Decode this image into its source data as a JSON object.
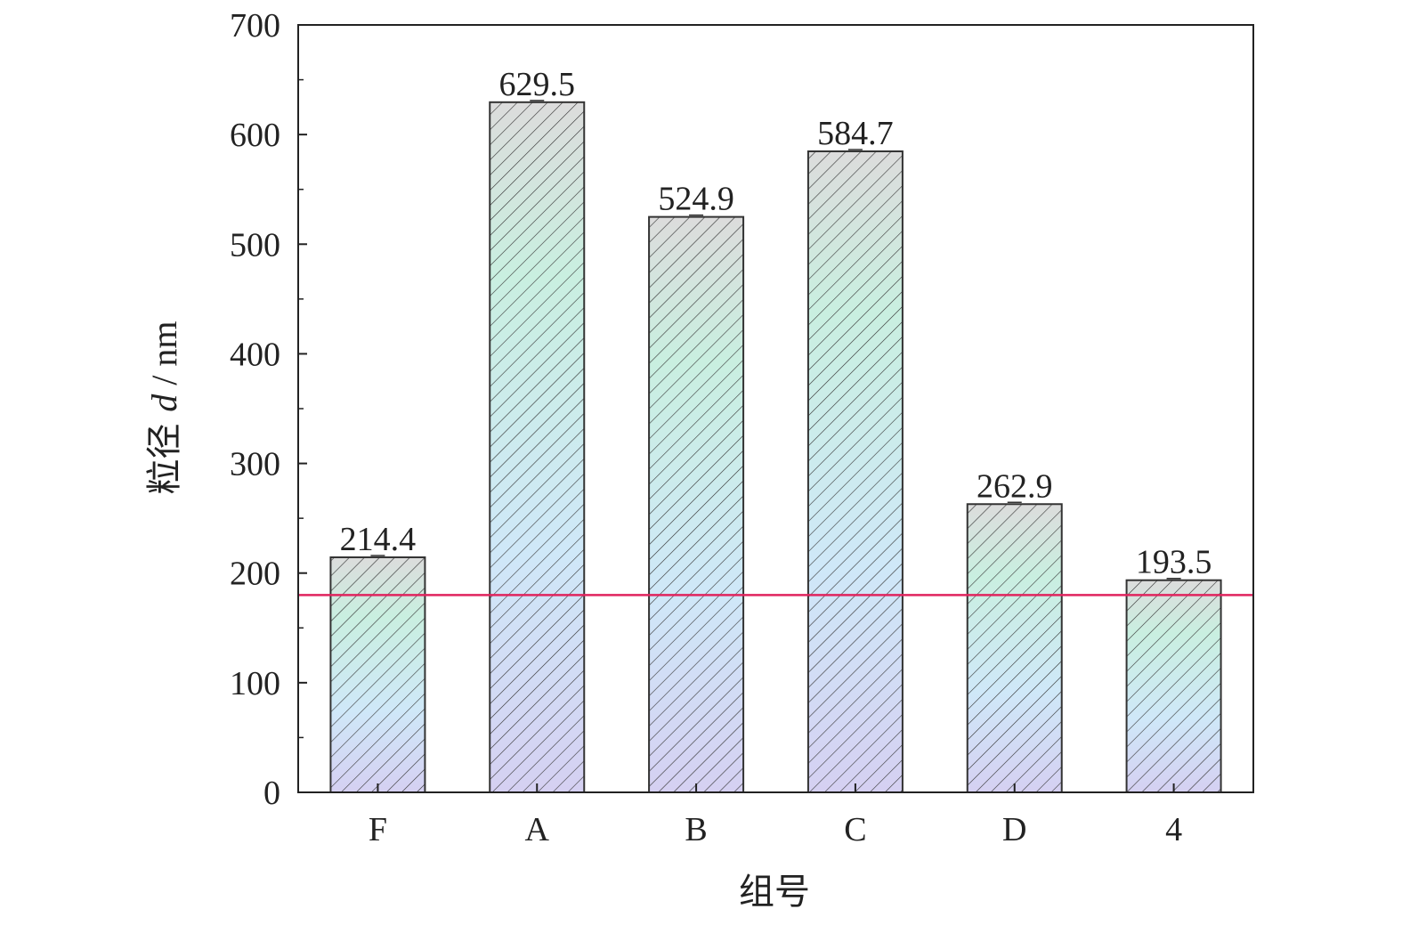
{
  "chart_data": {
    "type": "bar",
    "categories": [
      "F",
      "A",
      "B",
      "C",
      "D",
      "4"
    ],
    "values": [
      214.4,
      629.5,
      524.9,
      584.7,
      262.9,
      193.5
    ],
    "data_labels": [
      "214.4",
      "629.5",
      "524.9",
      "584.7",
      "262.9",
      "193.5"
    ],
    "xlabel": "组号",
    "ylabel": {
      "prefix": "粒径 ",
      "variable": "d",
      "suffix": " / nm"
    },
    "ylim": [
      0,
      700
    ],
    "yticks": [
      0,
      100,
      200,
      300,
      400,
      500,
      600,
      700
    ],
    "reference_line": {
      "y": 180,
      "color": "#e0245e"
    },
    "grid": false,
    "legend": "none",
    "colors": {
      "bar_edge": "#333333",
      "bar_fill": [
        "#cfe8f8",
        "#c9efe0",
        "#d5d0f2"
      ],
      "hatch": "#333333",
      "axis": "#222222"
    }
  }
}
